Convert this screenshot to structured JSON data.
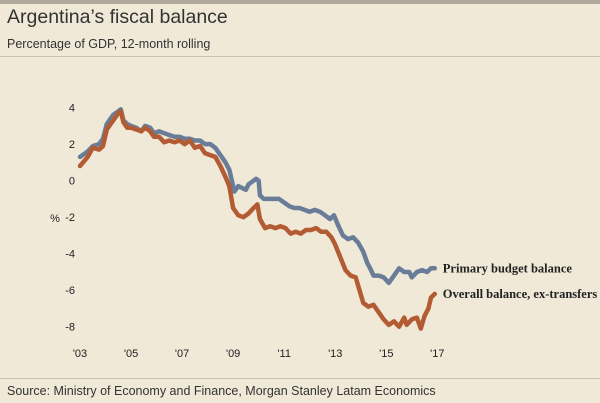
{
  "header": {
    "title": "Argentina’s fiscal balance",
    "subtitle": "Percentage of GDP, 12-month rolling"
  },
  "footer": {
    "source": "Source: Ministry of Economy and Finance, Morgan Stanley Latam Economics"
  },
  "colors": {
    "background": "#f0e9d8",
    "primary_series": "#6a7d98",
    "overall_series": "#b35c33"
  },
  "chart_data": {
    "type": "line",
    "title": "Argentina’s fiscal balance",
    "subtitle": "Percentage of GDP, 12-month rolling",
    "ylabel": "%",
    "xlabel": "",
    "xlim": [
      2003,
      2017.3
    ],
    "ylim": [
      -9,
      4.8
    ],
    "x_ticks": [
      2003,
      2005,
      2007,
      2009,
      2011,
      2013,
      2015,
      2017
    ],
    "x_tick_labels": [
      "'03",
      "'05",
      "'07",
      "'09",
      "'11",
      "'13",
      "'15",
      "'17"
    ],
    "y_ticks": [
      4,
      2,
      0,
      -2,
      -4,
      -6,
      -8
    ],
    "y_tick_labels": [
      "4",
      "2",
      "0",
      "-2",
      "-4",
      "-6",
      "-8"
    ],
    "grid": false,
    "legend": "direct labels at line ends",
    "series": [
      {
        "name": "Primary budget balance",
        "color": "#6a7d98",
        "points": [
          [
            2003.0,
            1.3
          ],
          [
            2003.3,
            1.6
          ],
          [
            2003.5,
            1.9
          ],
          [
            2003.75,
            2.0
          ],
          [
            2003.9,
            2.3
          ],
          [
            2004.05,
            3.1
          ],
          [
            2004.3,
            3.6
          ],
          [
            2004.5,
            3.8
          ],
          [
            2004.6,
            3.9
          ],
          [
            2004.7,
            3.3
          ],
          [
            2004.85,
            3.1
          ],
          [
            2005.0,
            3.0
          ],
          [
            2005.2,
            2.9
          ],
          [
            2005.4,
            2.7
          ],
          [
            2005.55,
            3.0
          ],
          [
            2005.75,
            2.9
          ],
          [
            2005.9,
            2.6
          ],
          [
            2006.1,
            2.7
          ],
          [
            2006.3,
            2.6
          ],
          [
            2006.5,
            2.5
          ],
          [
            2006.7,
            2.4
          ],
          [
            2006.9,
            2.4
          ],
          [
            2007.1,
            2.3
          ],
          [
            2007.3,
            2.3
          ],
          [
            2007.5,
            2.2
          ],
          [
            2007.7,
            2.2
          ],
          [
            2007.9,
            2.0
          ],
          [
            2008.1,
            2.0
          ],
          [
            2008.3,
            1.8
          ],
          [
            2008.5,
            1.4
          ],
          [
            2008.7,
            1.0
          ],
          [
            2008.85,
            0.6
          ],
          [
            2008.95,
            0.0
          ],
          [
            2009.05,
            -0.6
          ],
          [
            2009.2,
            -0.3
          ],
          [
            2009.35,
            -0.4
          ],
          [
            2009.5,
            -0.5
          ],
          [
            2009.6,
            -0.2
          ],
          [
            2009.8,
            0.0
          ],
          [
            2009.9,
            0.1
          ],
          [
            2010.0,
            0.0
          ],
          [
            2010.05,
            -0.8
          ],
          [
            2010.2,
            -1.0
          ],
          [
            2010.4,
            -1.0
          ],
          [
            2010.6,
            -1.0
          ],
          [
            2010.8,
            -1.0
          ],
          [
            2011.0,
            -1.2
          ],
          [
            2011.2,
            -1.4
          ],
          [
            2011.4,
            -1.5
          ],
          [
            2011.6,
            -1.5
          ],
          [
            2011.8,
            -1.6
          ],
          [
            2012.0,
            -1.7
          ],
          [
            2012.2,
            -1.6
          ],
          [
            2012.4,
            -1.7
          ],
          [
            2012.6,
            -1.9
          ],
          [
            2012.8,
            -2.1
          ],
          [
            2012.95,
            -1.9
          ],
          [
            2013.1,
            -2.4
          ],
          [
            2013.3,
            -3.0
          ],
          [
            2013.5,
            -3.2
          ],
          [
            2013.7,
            -3.1
          ],
          [
            2013.9,
            -3.4
          ],
          [
            2014.1,
            -3.9
          ],
          [
            2014.25,
            -4.5
          ],
          [
            2014.4,
            -4.9
          ],
          [
            2014.5,
            -5.2
          ],
          [
            2014.7,
            -5.2
          ],
          [
            2014.9,
            -5.3
          ],
          [
            2015.1,
            -5.6
          ],
          [
            2015.3,
            -5.2
          ],
          [
            2015.5,
            -4.8
          ],
          [
            2015.7,
            -5.0
          ],
          [
            2015.9,
            -5.0
          ],
          [
            2016.0,
            -5.3
          ],
          [
            2016.2,
            -5.0
          ],
          [
            2016.4,
            -4.9
          ],
          [
            2016.6,
            -5.0
          ],
          [
            2016.75,
            -4.8
          ],
          [
            2016.9,
            -4.8
          ]
        ]
      },
      {
        "name": "Overall balance, ex-transfers",
        "color": "#b35c33",
        "points": [
          [
            2003.0,
            0.8
          ],
          [
            2003.3,
            1.3
          ],
          [
            2003.5,
            1.8
          ],
          [
            2003.75,
            1.7
          ],
          [
            2003.9,
            1.9
          ],
          [
            2004.05,
            2.8
          ],
          [
            2004.3,
            3.3
          ],
          [
            2004.5,
            3.7
          ],
          [
            2004.6,
            3.8
          ],
          [
            2004.7,
            3.2
          ],
          [
            2004.85,
            2.9
          ],
          [
            2005.0,
            2.9
          ],
          [
            2005.2,
            2.8
          ],
          [
            2005.4,
            2.7
          ],
          [
            2005.55,
            2.9
          ],
          [
            2005.75,
            2.7
          ],
          [
            2005.9,
            2.4
          ],
          [
            2006.1,
            2.4
          ],
          [
            2006.3,
            2.1
          ],
          [
            2006.5,
            2.2
          ],
          [
            2006.7,
            2.1
          ],
          [
            2006.9,
            2.2
          ],
          [
            2007.1,
            2.0
          ],
          [
            2007.3,
            2.2
          ],
          [
            2007.5,
            1.8
          ],
          [
            2007.7,
            1.9
          ],
          [
            2007.9,
            1.5
          ],
          [
            2008.1,
            1.4
          ],
          [
            2008.3,
            1.3
          ],
          [
            2008.5,
            0.8
          ],
          [
            2008.7,
            0.2
          ],
          [
            2008.85,
            -0.3
          ],
          [
            2009.0,
            -1.5
          ],
          [
            2009.2,
            -1.9
          ],
          [
            2009.4,
            -2.0
          ],
          [
            2009.6,
            -1.8
          ],
          [
            2009.8,
            -1.5
          ],
          [
            2009.95,
            -1.3
          ],
          [
            2010.05,
            -2.1
          ],
          [
            2010.25,
            -2.6
          ],
          [
            2010.45,
            -2.5
          ],
          [
            2010.65,
            -2.6
          ],
          [
            2010.85,
            -2.5
          ],
          [
            2011.05,
            -2.6
          ],
          [
            2011.25,
            -2.9
          ],
          [
            2011.45,
            -2.8
          ],
          [
            2011.65,
            -2.9
          ],
          [
            2011.85,
            -2.7
          ],
          [
            2012.05,
            -2.7
          ],
          [
            2012.25,
            -2.6
          ],
          [
            2012.45,
            -2.8
          ],
          [
            2012.65,
            -2.8
          ],
          [
            2012.85,
            -3.1
          ],
          [
            2013.0,
            -3.5
          ],
          [
            2013.2,
            -4.2
          ],
          [
            2013.4,
            -4.9
          ],
          [
            2013.6,
            -5.2
          ],
          [
            2013.8,
            -5.3
          ],
          [
            2013.95,
            -6.0
          ],
          [
            2014.1,
            -6.7
          ],
          [
            2014.3,
            -6.9
          ],
          [
            2014.5,
            -6.8
          ],
          [
            2014.7,
            -7.2
          ],
          [
            2014.9,
            -7.6
          ],
          [
            2015.1,
            -7.9
          ],
          [
            2015.3,
            -7.7
          ],
          [
            2015.5,
            -8.0
          ],
          [
            2015.7,
            -7.5
          ],
          [
            2015.8,
            -7.9
          ],
          [
            2016.0,
            -7.6
          ],
          [
            2016.2,
            -7.5
          ],
          [
            2016.35,
            -8.1
          ],
          [
            2016.5,
            -7.4
          ],
          [
            2016.65,
            -7.0
          ],
          [
            2016.75,
            -6.4
          ],
          [
            2016.9,
            -6.2
          ]
        ]
      }
    ]
  }
}
